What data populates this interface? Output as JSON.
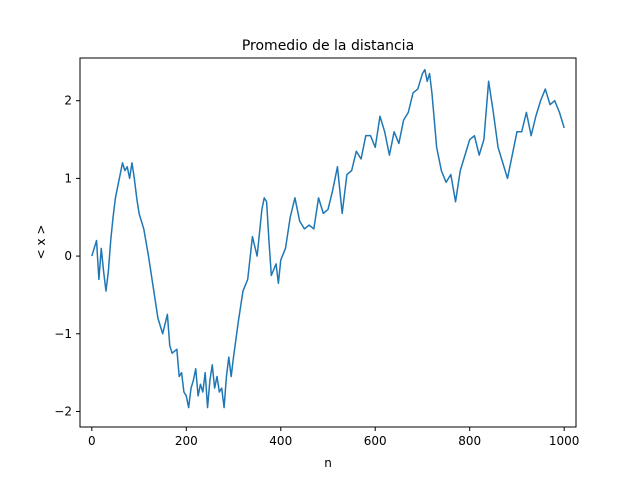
{
  "chart_data": {
    "type": "line",
    "title": "Promedio de la distancia",
    "xlabel": "n",
    "ylabel": "< x >",
    "xlim": [
      -25,
      1025
    ],
    "ylim": [
      -2.2,
      2.55
    ],
    "xticks": [
      0,
      200,
      400,
      600,
      800,
      1000
    ],
    "yticks": [
      -2,
      -1,
      0,
      1,
      2
    ],
    "ytick_labels": [
      "−2",
      "−1",
      "0",
      "1",
      "2"
    ],
    "grid": false,
    "line_color": "#1f77b4",
    "series": [
      {
        "x": [
          0,
          10,
          15,
          20,
          25,
          30,
          35,
          40,
          45,
          50,
          55,
          60,
          65,
          70,
          75,
          80,
          85,
          90,
          95,
          100,
          110,
          120,
          130,
          140,
          150,
          160,
          165,
          170,
          180,
          185,
          190,
          195,
          200,
          205,
          210,
          215,
          220,
          225,
          230,
          235,
          240,
          245,
          250,
          255,
          260,
          265,
          270,
          275,
          280,
          285,
          290,
          295,
          300,
          310,
          320,
          330,
          340,
          350,
          360,
          365,
          370,
          375,
          380,
          390,
          395,
          400,
          410,
          420,
          430,
          440,
          450,
          460,
          470,
          480,
          490,
          500,
          510,
          520,
          530,
          540,
          550,
          560,
          570,
          580,
          590,
          600,
          610,
          620,
          630,
          640,
          650,
          660,
          670,
          680,
          690,
          700,
          705,
          710,
          715,
          720,
          730,
          740,
          750,
          760,
          770,
          780,
          790,
          800,
          810,
          820,
          830,
          840,
          850,
          860,
          870,
          880,
          890,
          900,
          910,
          920,
          930,
          940,
          950,
          960,
          970,
          980,
          990,
          1000
        ],
        "y": [
          0,
          0.2,
          -0.3,
          0.1,
          -0.2,
          -0.45,
          -0.2,
          0.2,
          0.5,
          0.75,
          0.9,
          1.05,
          1.2,
          1.1,
          1.15,
          1.0,
          1.2,
          1.0,
          0.75,
          0.55,
          0.35,
          0.0,
          -0.4,
          -0.8,
          -1.0,
          -0.75,
          -1.15,
          -1.25,
          -1.2,
          -1.55,
          -1.5,
          -1.75,
          -1.8,
          -1.95,
          -1.7,
          -1.6,
          -1.45,
          -1.8,
          -1.65,
          -1.75,
          -1.5,
          -1.95,
          -1.6,
          -1.4,
          -1.7,
          -1.55,
          -1.75,
          -1.7,
          -1.95,
          -1.55,
          -1.3,
          -1.55,
          -1.3,
          -0.85,
          -0.45,
          -0.3,
          0.25,
          0.0,
          0.6,
          0.75,
          0.7,
          0.2,
          -0.25,
          -0.1,
          -0.35,
          -0.05,
          0.1,
          0.5,
          0.75,
          0.45,
          0.35,
          0.4,
          0.35,
          0.75,
          0.55,
          0.6,
          0.85,
          1.15,
          0.55,
          1.05,
          1.1,
          1.35,
          1.25,
          1.55,
          1.55,
          1.4,
          1.8,
          1.6,
          1.3,
          1.6,
          1.45,
          1.75,
          1.85,
          2.1,
          2.15,
          2.35,
          2.4,
          2.25,
          2.35,
          2.1,
          1.4,
          1.1,
          0.95,
          1.05,
          0.7,
          1.1,
          1.3,
          1.5,
          1.55,
          1.3,
          1.5,
          2.25,
          1.85,
          1.4,
          1.2,
          1.0,
          1.3,
          1.6,
          1.6,
          1.85,
          1.55,
          1.8,
          2.0,
          2.15,
          1.95,
          2.0,
          1.85,
          1.65
        ]
      }
    ]
  }
}
